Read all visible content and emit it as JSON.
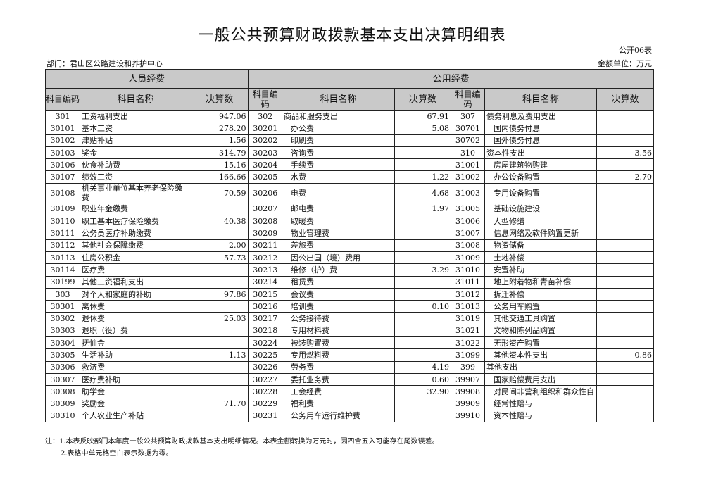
{
  "title": "一般公共预算财政拨款基本支出决算明细表",
  "form_no": "公开06表",
  "department": "部门：君山区公路建设和养护中心",
  "unit": "金额单位：万元",
  "groups": [
    "人员经费",
    "公用经费"
  ],
  "headers": {
    "code": "科目编码",
    "name": "科目名称",
    "value": "决算数"
  },
  "rows": [
    [
      [
        "301",
        "工资福利支出",
        "947.06"
      ],
      [
        "302",
        "商品和服务支出",
        "67.91"
      ],
      [
        "307",
        "债务利息及费用支出",
        ""
      ]
    ],
    [
      [
        "30101",
        "基本工资",
        "278.20"
      ],
      [
        "30201",
        "办公费",
        "5.08"
      ],
      [
        "30701",
        "国内债务付息",
        ""
      ]
    ],
    [
      [
        "30102",
        "津贴补贴",
        "1.56"
      ],
      [
        "30202",
        "印刷费",
        ""
      ],
      [
        "30702",
        "国外债务付息",
        ""
      ]
    ],
    [
      [
        "30103",
        "奖金",
        "314.79"
      ],
      [
        "30203",
        "咨询费",
        ""
      ],
      [
        "310",
        "资本性支出",
        "3.56"
      ]
    ],
    [
      [
        "30106",
        "伙食补助费",
        "15.16"
      ],
      [
        "30204",
        "手续费",
        ""
      ],
      [
        "31001",
        "房屋建筑物购建",
        ""
      ]
    ],
    [
      [
        "30107",
        "绩效工资",
        "166.66"
      ],
      [
        "30205",
        "水费",
        "1.22"
      ],
      [
        "31002",
        "办公设备购置",
        "2.70"
      ]
    ],
    [
      [
        "30108",
        "机关事业单位基本养老保险缴费",
        "70.59"
      ],
      [
        "30206",
        "电费",
        "4.68"
      ],
      [
        "31003",
        "专用设备购置",
        ""
      ]
    ],
    [
      [
        "30109",
        "职业年金缴费",
        ""
      ],
      [
        "30207",
        "邮电费",
        "1.97"
      ],
      [
        "31005",
        "基础设施建设",
        ""
      ]
    ],
    [
      [
        "30110",
        "职工基本医疗保险缴费",
        "40.38"
      ],
      [
        "30208",
        "取暖费",
        ""
      ],
      [
        "31006",
        "大型修缮",
        ""
      ]
    ],
    [
      [
        "30111",
        "公务员医疗补助缴费",
        ""
      ],
      [
        "30209",
        "物业管理费",
        ""
      ],
      [
        "31007",
        "信息网络及软件购置更新",
        ""
      ]
    ],
    [
      [
        "30112",
        "其他社会保障缴费",
        "2.00"
      ],
      [
        "30211",
        "差旅费",
        ""
      ],
      [
        "31008",
        "物资储备",
        ""
      ]
    ],
    [
      [
        "30113",
        "住房公积金",
        "57.73"
      ],
      [
        "30212",
        "因公出国（境）费用",
        ""
      ],
      [
        "31009",
        "土地补偿",
        ""
      ]
    ],
    [
      [
        "30114",
        "医疗费",
        ""
      ],
      [
        "30213",
        "维修（护）费",
        "3.29"
      ],
      [
        "31010",
        "安置补助",
        ""
      ]
    ],
    [
      [
        "30199",
        "其他工资福利支出",
        ""
      ],
      [
        "30214",
        "租赁费",
        ""
      ],
      [
        "31011",
        "地上附着物和青苗补偿",
        ""
      ]
    ],
    [
      [
        "303",
        "对个人和家庭的补助",
        "97.86"
      ],
      [
        "30215",
        "会议费",
        ""
      ],
      [
        "31012",
        "拆迁补偿",
        ""
      ]
    ],
    [
      [
        "30301",
        "离休费",
        ""
      ],
      [
        "30216",
        "培训费",
        "0.10"
      ],
      [
        "31013",
        "公务用车购置",
        ""
      ]
    ],
    [
      [
        "30302",
        "退休费",
        "25.03"
      ],
      [
        "30217",
        "公务接待费",
        ""
      ],
      [
        "31019",
        "其他交通工具购置",
        ""
      ]
    ],
    [
      [
        "30303",
        "退职（役）费",
        ""
      ],
      [
        "30218",
        "专用材料费",
        ""
      ],
      [
        "31021",
        "文物和陈列品购置",
        ""
      ]
    ],
    [
      [
        "30304",
        "抚恤金",
        ""
      ],
      [
        "30224",
        "被装购置费",
        ""
      ],
      [
        "31022",
        "无形资产购置",
        ""
      ]
    ],
    [
      [
        "30305",
        "生活补助",
        "1.13"
      ],
      [
        "30225",
        "专用燃料费",
        ""
      ],
      [
        "31099",
        "其他资本性支出",
        "0.86"
      ]
    ],
    [
      [
        "30306",
        "救济费",
        ""
      ],
      [
        "30226",
        "劳务费",
        "4.19"
      ],
      [
        "399",
        "其他支出",
        ""
      ]
    ],
    [
      [
        "30307",
        "医疗费补助",
        ""
      ],
      [
        "30227",
        "委托业务费",
        "0.60"
      ],
      [
        "39907",
        "国家赔偿费用支出",
        ""
      ]
    ],
    [
      [
        "30308",
        "助学金",
        ""
      ],
      [
        "30228",
        "工会经费",
        "32.90"
      ],
      [
        "39908",
        "对民间非营利组织和群众性自",
        ""
      ]
    ],
    [
      [
        "30309",
        "奖励金",
        "71.70"
      ],
      [
        "30229",
        "福利费",
        ""
      ],
      [
        "39909",
        "经常性赠与",
        ""
      ]
    ],
    [
      [
        "30310",
        "个人农业生产补贴",
        ""
      ],
      [
        "30231",
        "公务用车运行维护费",
        ""
      ],
      [
        "39910",
        "资本性赠与",
        ""
      ]
    ]
  ],
  "notes": [
    "注：1.本表反映部门本年度一般公共预算财政拨款基本支出明细情况。本表金额转换为万元时，因四舍五入可能存在尾数误差。",
    "2.表格中单元格空白表示数据为零。"
  ]
}
